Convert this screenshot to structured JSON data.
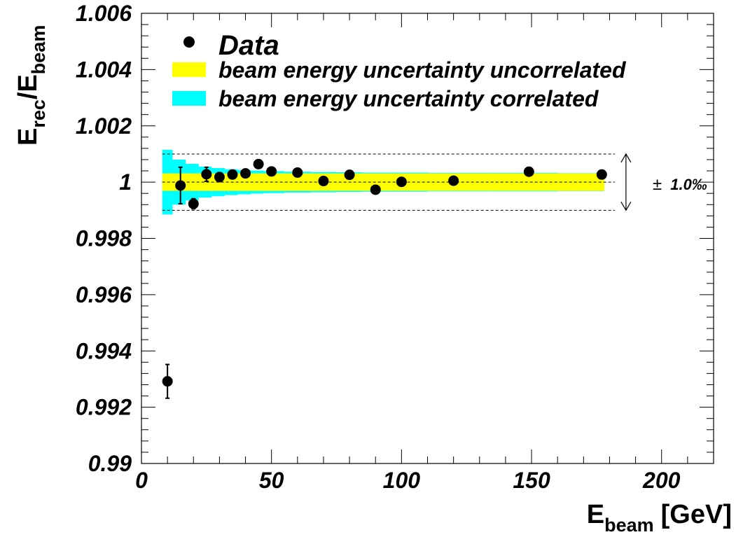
{
  "chart_data": {
    "type": "scatter",
    "xlabel": "E",
    "xlabel_sub": "beam",
    "xlabel_unit": "[GeV]",
    "ylabel_main1": "E",
    "ylabel_sub1": "rec",
    "ylabel_slash": "/E",
    "ylabel_sub2": "beam",
    "xlim": [
      0,
      220
    ],
    "ylim": [
      0.99,
      1.006
    ],
    "x_ticks": [
      0,
      50,
      100,
      150,
      200
    ],
    "x_tick_labels": [
      "0",
      "50",
      "100",
      "150",
      "200"
    ],
    "y_ticks": [
      0.99,
      0.992,
      0.994,
      0.996,
      0.998,
      1.0,
      1.002,
      1.004,
      1.006
    ],
    "y_tick_labels": [
      "0.99",
      "0.992",
      "0.994",
      "0.996",
      "0.998",
      "1",
      "1.002",
      "1.004",
      "1.006"
    ],
    "grid": false,
    "legend_position": "top-left",
    "legend": [
      {
        "label": "Data",
        "marker": "dot",
        "color": "#000000"
      },
      {
        "label": "beam energy uncertainty uncorrelated",
        "marker": "box",
        "color": "#ffff00"
      },
      {
        "label": "beam energy uncertainty correlated",
        "marker": "box",
        "color": "#00ffff"
      }
    ],
    "series": [
      {
        "name": "Data",
        "points": [
          {
            "x": 10,
            "y": 0.99292,
            "err": 0.0006
          },
          {
            "x": 15,
            "y": 0.99988,
            "err": 0.00065
          },
          {
            "x": 20,
            "y": 0.99923,
            "err": 0.00018
          },
          {
            "x": 25,
            "y": 1.00028,
            "err": 0.00025
          },
          {
            "x": 30,
            "y": 1.00018,
            "err": 0.00016
          },
          {
            "x": 35,
            "y": 1.00027,
            "err": 0.00014
          },
          {
            "x": 40,
            "y": 1.00031,
            "err": 0.00014
          },
          {
            "x": 45,
            "y": 1.00064,
            "err": 0.00012
          },
          {
            "x": 50,
            "y": 1.00038,
            "err": 0.0
          },
          {
            "x": 60,
            "y": 1.00034,
            "err": 0.0
          },
          {
            "x": 70,
            "y": 1.00004,
            "err": 0.0
          },
          {
            "x": 80,
            "y": 1.00026,
            "err": 0.0
          },
          {
            "x": 90,
            "y": 0.99973,
            "err": 0.0
          },
          {
            "x": 100,
            "y": 1.00001,
            "err": 0.0
          },
          {
            "x": 120,
            "y": 1.00005,
            "err": 0.0
          },
          {
            "x": 149,
            "y": 1.00037,
            "err": 0.0
          },
          {
            "x": 177,
            "y": 1.00027,
            "err": 0.0
          }
        ]
      }
    ],
    "bands": {
      "uncorrelated_halfwidth": 0.00031,
      "uncorrelated_x": [
        8,
        178
      ],
      "correlated_steps": [
        {
          "x0": 8,
          "x1": 12,
          "hw": 0.00115
        },
        {
          "x0": 12,
          "x1": 17,
          "hw": 0.0008
        },
        {
          "x0": 17,
          "x1": 22,
          "hw": 0.00065
        },
        {
          "x0": 22,
          "x1": 27,
          "hw": 0.00055
        },
        {
          "x0": 27,
          "x1": 32,
          "hw": 0.0005
        },
        {
          "x0": 32,
          "x1": 37,
          "hw": 0.00046
        },
        {
          "x0": 37,
          "x1": 42,
          "hw": 0.00043
        },
        {
          "x0": 42,
          "x1": 47,
          "hw": 0.00041
        },
        {
          "x0": 47,
          "x1": 55,
          "hw": 0.00039
        },
        {
          "x0": 55,
          "x1": 65,
          "hw": 0.00037
        },
        {
          "x0": 65,
          "x1": 75,
          "hw": 0.00036
        },
        {
          "x0": 75,
          "x1": 85,
          "hw": 0.00035
        },
        {
          "x0": 85,
          "x1": 95,
          "hw": 0.00034
        },
        {
          "x0": 95,
          "x1": 110,
          "hw": 0.00034
        },
        {
          "x0": 110,
          "x1": 135,
          "hw": 0.00033
        },
        {
          "x0": 135,
          "x1": 160,
          "hw": 0.00033
        },
        {
          "x0": 160,
          "x1": 178,
          "hw": 0.00032
        }
      ]
    },
    "reference_lines": [
      0.999,
      1.0,
      1.001
    ],
    "reference_x": [
      8,
      182
    ],
    "annotation": {
      "text": "1.0‰",
      "symbol": "±",
      "y_low": 0.999,
      "y_high": 1.001,
      "x": 182
    },
    "colors": {
      "uncorrelated": "#ffff00",
      "correlated": "#00ffff",
      "markers": "#000000",
      "reference": "#000000"
    }
  }
}
